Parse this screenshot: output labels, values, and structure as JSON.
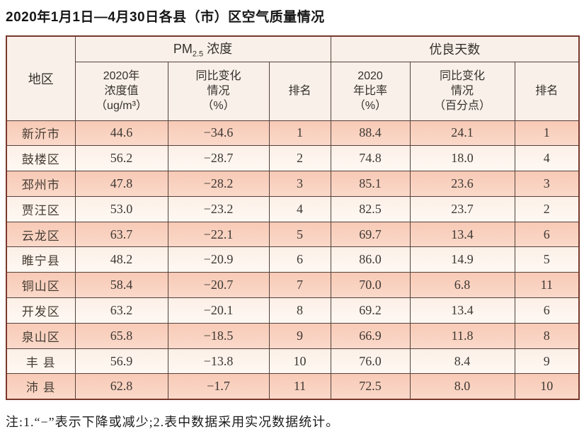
{
  "title": "2020年1月1日—4月30日各县（市）区空气质量情况",
  "note": "注:1.“−”表示下降或减少;2.表中数据采用实况数据统计。",
  "colors": {
    "stripe_pink": "#f8cab6",
    "stripe_cream": "#fcf0e8",
    "header_bg": "#f8f0e9",
    "outer_border": "#79382c",
    "inner_border": "#55413a"
  },
  "table": {
    "corner_header": "地区",
    "group_headers": {
      "pm25": {
        "prefix": "PM",
        "subscript": "2.5",
        "suffix": " 浓度"
      },
      "good_days": "优良天数"
    },
    "sub_headers": [
      {
        "name": "pm25-value-header",
        "lines": [
          "2020年",
          "浓度值",
          "（ug/m³）"
        ]
      },
      {
        "name": "pm25-change-header",
        "lines": [
          "同比变化",
          "情况",
          "（%）"
        ]
      },
      {
        "name": "pm25-rank-header",
        "lines": [
          "排名"
        ]
      },
      {
        "name": "good-rate-header",
        "lines": [
          "2020",
          "年比率",
          "（%）"
        ]
      },
      {
        "name": "good-change-header",
        "lines": [
          "同比变化",
          "情况",
          "（百分点）"
        ]
      },
      {
        "name": "good-rank-header",
        "lines": [
          "排名"
        ]
      }
    ],
    "rows": [
      {
        "region": "新沂市",
        "pm25_value": "44.6",
        "pm25_change": "−34.6",
        "pm25_rank": "1",
        "good_rate": "88.4",
        "good_change": "24.1",
        "good_rank": "1"
      },
      {
        "region": "鼓楼区",
        "pm25_value": "56.2",
        "pm25_change": "−28.7",
        "pm25_rank": "2",
        "good_rate": "74.8",
        "good_change": "18.0",
        "good_rank": "4"
      },
      {
        "region": "邳州市",
        "pm25_value": "47.8",
        "pm25_change": "−28.2",
        "pm25_rank": "3",
        "good_rate": "85.1",
        "good_change": "23.6",
        "good_rank": "3"
      },
      {
        "region": "贾汪区",
        "pm25_value": "53.0",
        "pm25_change": "−23.2",
        "pm25_rank": "4",
        "good_rate": "82.5",
        "good_change": "23.7",
        "good_rank": "2"
      },
      {
        "region": "云龙区",
        "pm25_value": "63.7",
        "pm25_change": "−22.1",
        "pm25_rank": "5",
        "good_rate": "69.7",
        "good_change": "13.4",
        "good_rank": "6"
      },
      {
        "region": "睢宁县",
        "pm25_value": "48.2",
        "pm25_change": "−20.9",
        "pm25_rank": "6",
        "good_rate": "86.0",
        "good_change": "14.9",
        "good_rank": "5"
      },
      {
        "region": "铜山区",
        "pm25_value": "58.4",
        "pm25_change": "−20.7",
        "pm25_rank": "7",
        "good_rate": "70.0",
        "good_change": "6.8",
        "good_rank": "11"
      },
      {
        "region": "开发区",
        "pm25_value": "63.2",
        "pm25_change": "−20.1",
        "pm25_rank": "8",
        "good_rate": "69.2",
        "good_change": "13.4",
        "good_rank": "6"
      },
      {
        "region": "泉山区",
        "pm25_value": "65.8",
        "pm25_change": "−18.5",
        "pm25_rank": "9",
        "good_rate": "66.9",
        "good_change": "11.8",
        "good_rank": "8"
      },
      {
        "region": "丰 县",
        "pm25_value": "56.9",
        "pm25_change": "−13.8",
        "pm25_rank": "10",
        "good_rate": "76.0",
        "good_change": "8.4",
        "good_rank": "9"
      },
      {
        "region": "沛 县",
        "pm25_value": "62.8",
        "pm25_change": "−1.7",
        "pm25_rank": "11",
        "good_rate": "72.5",
        "good_change": "8.0",
        "good_rank": "10"
      }
    ]
  }
}
